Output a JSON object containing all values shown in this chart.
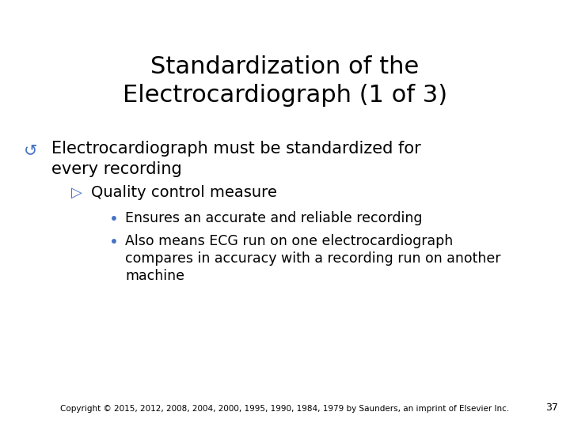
{
  "title_line1": "Standardization of the",
  "title_line2": "Electrocardiograph (1 of 3)",
  "title_fontsize": 22,
  "title_color": "#000000",
  "bg_color": "#ffffff",
  "bullet1_text_line1": "Electrocardiograph must be standardized for",
  "bullet1_text_line2": "every recording",
  "bullet1_fontsize": 15,
  "bullet1_color": "#000000",
  "bullet1_symbol_color": "#4472c4",
  "sub_bullet_text": "Quality control measure",
  "sub_bullet_fontsize": 14,
  "sub_bullet_color": "#000000",
  "sub_bullet_symbol_color": "#4472c4",
  "dot_color": "#4472c4",
  "dot_bullet1": "Ensures an accurate and reliable recording",
  "dot_bullet2_line1": "Also means ECG run on one electrocardiograph",
  "dot_bullet2_line2": "compares in accuracy with a recording run on another",
  "dot_bullet2_line3": "machine",
  "dot_fontsize": 12.5,
  "dot_text_color": "#000000",
  "footer_text": "Copyright © 2015, 2012, 2008, 2004, 2000, 1995, 1990, 1984, 1979 by Saunders, an imprint of Elsevier Inc.",
  "footer_fontsize": 7.5,
  "footer_color": "#000000",
  "page_number": "37",
  "page_number_fontsize": 9,
  "page_number_color": "#000000"
}
